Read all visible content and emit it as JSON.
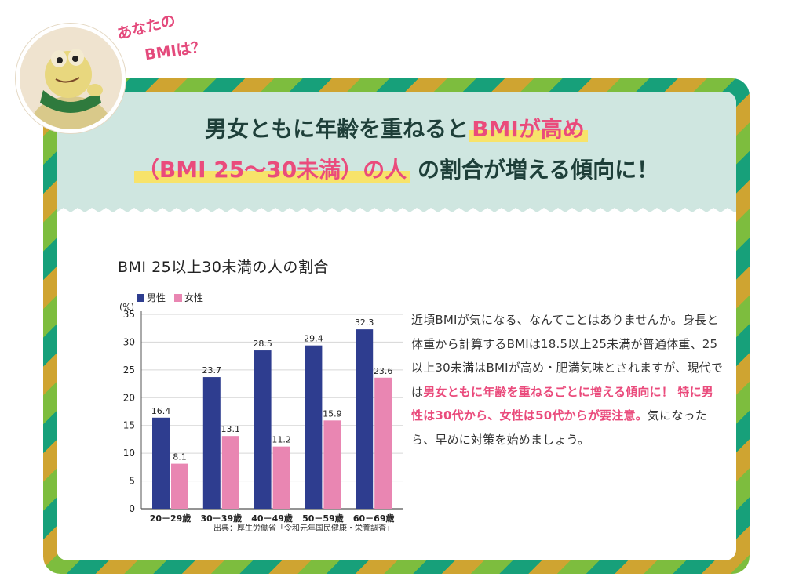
{
  "bubble": {
    "line1": "あなたの",
    "line2": "BMIは？"
  },
  "headline": {
    "line1_plain": "男女ともに年齢を重ねると",
    "line1_highlight": "BMIが高め",
    "line2_highlight": "（BMI 25〜30未満）の人",
    "line2_plain": "の割合が増える傾向に！"
  },
  "chart_data": {
    "type": "bar",
    "title": "BMI 25以上30未満の人の割合",
    "ylabel": "(%)",
    "ylim": [
      0,
      35
    ],
    "yticks": [
      "0",
      "5",
      "10",
      "15",
      "20",
      "25",
      "30",
      "35"
    ],
    "categories": [
      "20－29歳",
      "30－39歳",
      "40－49歳",
      "50－59歳",
      "60－69歳"
    ],
    "series": [
      {
        "name": "男性",
        "color": "#2e3d8f",
        "values": [
          16.4,
          23.7,
          28.5,
          29.4,
          32.3
        ]
      },
      {
        "name": "女性",
        "color": "#e986b2",
        "values": [
          8.1,
          13.1,
          11.2,
          15.9,
          23.6
        ]
      }
    ],
    "legend_position": "top-left",
    "source": "出典：厚生労働省「令和元年国民健康・栄養調査」"
  },
  "body": {
    "p1": "近頃BMIが気になる、なんてことはありませんか。身長と体重から計算するBMIは18.5以上25未満が普通体重、25以上30未満はBMIが高め・肥満気味とされますが、現代では",
    "em1": "男女ともに年齢を重ねるごとに増える傾向に！ 特に男性は30代から、女性は50代からが要注意。",
    "p2": "気になったら、早めに対策を始めましょう。"
  },
  "colors": {
    "accent_pink": "#ea4b7c",
    "highlight_yellow": "#f7e36a",
    "header_bg": "#cfe6e0",
    "text_dark": "#1e3f39"
  },
  "icons": {
    "mascot": "mascot-character-icon"
  }
}
